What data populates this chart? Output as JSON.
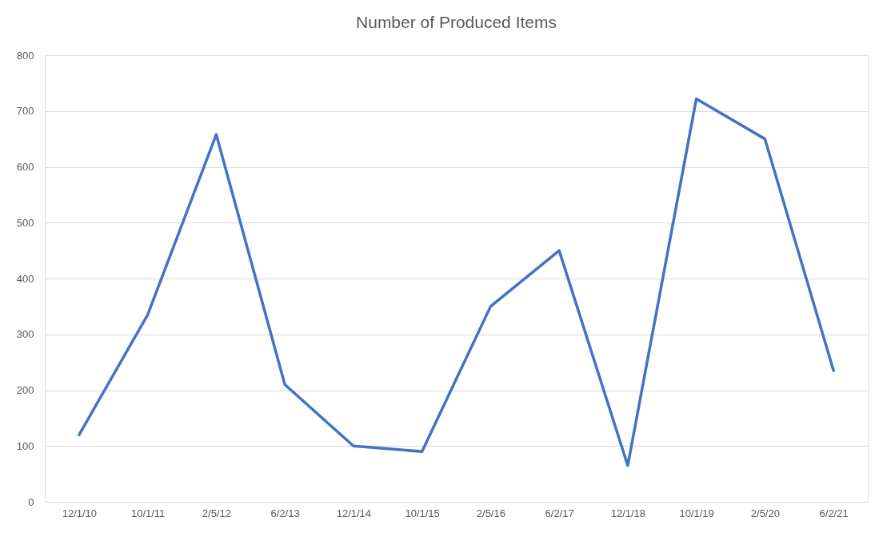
{
  "chart_data": {
    "type": "line",
    "title": "Number of Produced Items",
    "categories": [
      "12/1/10",
      "10/1/11",
      "2/5/12",
      "6/2/13",
      "12/1/14",
      "10/1/15",
      "2/5/16",
      "6/2/17",
      "12/1/18",
      "10/1/19",
      "2/5/20",
      "6/2/21"
    ],
    "series": [
      {
        "color": "#4472c4",
        "values": [
          120,
          335,
          658,
          210,
          100,
          90,
          350,
          450,
          65,
          722,
          650,
          235
        ]
      }
    ],
    "ylim": [
      0,
      800
    ],
    "yticks": [
      0,
      100,
      200,
      300,
      400,
      500,
      600,
      700,
      800
    ],
    "grid": "y",
    "marker": "none",
    "line_style": "solid"
  }
}
